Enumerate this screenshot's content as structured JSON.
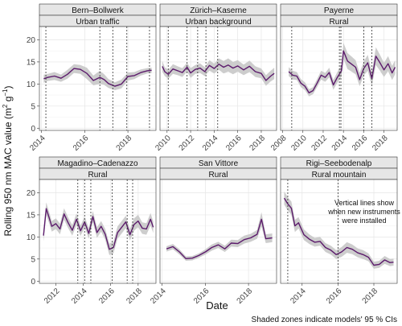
{
  "figure": {
    "ylabel": "Rolling 950 nm MAC value (m² g⁻¹)",
    "ylabel_main": "Rolling 950 nm MAC value (m",
    "ylabel_sup1": "2",
    "ylabel_mid": " g",
    "ylabel_sup2": "−1",
    "ylabel_end": ")",
    "xlabel": "Date",
    "caption": "Shaded zones indicate models' 95 % CIs",
    "annotation": [
      "Vertical lines show",
      "when new instruments",
      "were installed"
    ],
    "colors": {
      "line": "#5b1a6b",
      "band": "#c8c8c8",
      "grid": "#e6e6e6",
      "strip": "#e6e6e6",
      "vline": "#333333"
    }
  },
  "chart_data": [
    {
      "type": "line",
      "site": "Bern–Bollwerk",
      "category": "Urban traffic",
      "ylim": [
        -0.5,
        23
      ],
      "yticks": [
        0,
        5,
        10,
        15,
        20
      ],
      "xlim": [
        2013.9,
        2019.3
      ],
      "xticks": [
        2014,
        2016,
        2018
      ],
      "xticklabels": [
        "2014",
        "2016",
        "2018"
      ],
      "x": [
        2014.1,
        2014.3,
        2014.6,
        2014.9,
        2015.2,
        2015.5,
        2015.8,
        2016.1,
        2016.4,
        2016.7,
        2016.9,
        2017.1,
        2017.4,
        2017.7,
        2018.0,
        2018.3,
        2018.6,
        2018.9,
        2019.1
      ],
      "y": [
        11.2,
        11.5,
        11.8,
        11.3,
        12.2,
        13.5,
        13.3,
        12.4,
        10.8,
        11.5,
        11.0,
        10.1,
        9.5,
        10.0,
        11.7,
        11.9,
        12.6,
        13.0,
        13.1
      ],
      "ci": [
        0.9,
        0.8,
        0.9,
        0.8,
        1.0,
        1.0,
        1.0,
        1.3,
        1.1,
        1.5,
        1.2,
        1.0,
        0.9,
        1.0,
        0.9,
        0.8,
        0.7,
        0.6,
        0.6
      ],
      "vlines": [
        2014.2,
        2016.7,
        2017.3,
        2017.95,
        2019.0
      ]
    },
    {
      "type": "line",
      "site": "Zürich–Kaserne",
      "category": "Urban background",
      "ylim": [
        -0.5,
        23
      ],
      "yticks": [
        0,
        5,
        10,
        15,
        20
      ],
      "xlim": [
        2009.4,
        2019.3
      ],
      "xticks": [
        2010,
        2012,
        2014,
        2016,
        2018
      ],
      "xticklabels": [
        "2010",
        "2012",
        "2014",
        "2016",
        "2018"
      ],
      "x": [
        2009.6,
        2009.8,
        2010.1,
        2010.5,
        2010.9,
        2011.3,
        2011.7,
        2012.0,
        2012.4,
        2012.8,
        2013.2,
        2013.6,
        2014.0,
        2014.4,
        2014.8,
        2015.2,
        2015.6,
        2016.0,
        2016.5,
        2017.0,
        2017.5,
        2018.0,
        2018.4,
        2018.8,
        2019.1
      ],
      "y": [
        14.0,
        12.8,
        12.2,
        13.4,
        13.0,
        12.6,
        13.8,
        12.5,
        13.3,
        13.6,
        12.8,
        14.2,
        13.5,
        14.5,
        13.8,
        14.3,
        13.6,
        14.1,
        13.2,
        14.0,
        12.8,
        12.4,
        10.8,
        11.8,
        12.4
      ],
      "ci": [
        1.2,
        1.0,
        1.0,
        1.1,
        1.0,
        1.0,
        1.0,
        1.1,
        1.0,
        1.1,
        1.0,
        1.2,
        1.1,
        1.3,
        1.4,
        1.5,
        1.4,
        1.3,
        1.2,
        1.3,
        1.2,
        1.1,
        1.2,
        1.2,
        1.3
      ],
      "vlines": [
        2010.1,
        2011.7,
        2012.6,
        2013.3,
        2014.3
      ]
    },
    {
      "type": "line",
      "site": "Payerne",
      "category": "Rural",
      "ylim": [
        -0.5,
        23
      ],
      "yticks": [
        0,
        5,
        10,
        15,
        20
      ],
      "xlim": [
        2007.8,
        2019.3
      ],
      "xticks": [
        2008,
        2010,
        2012,
        2014,
        2016,
        2018
      ],
      "xticklabels": [
        "2008",
        "2010",
        "2012",
        "2014",
        "2016",
        "2018"
      ],
      "x": [
        2008.6,
        2009.0,
        2009.4,
        2009.8,
        2010.2,
        2010.6,
        2011.0,
        2011.4,
        2011.8,
        2012.2,
        2012.6,
        2013.0,
        2013.4,
        2013.8,
        2014.0,
        2014.4,
        2014.8,
        2015.2,
        2015.6,
        2016.0,
        2016.4,
        2016.8,
        2017.2,
        2017.6,
        2018.0,
        2018.4,
        2018.8,
        2019.1
      ],
      "y": [
        12.8,
        12.0,
        11.8,
        10.2,
        9.5,
        8.0,
        8.5,
        10.2,
        12.0,
        11.5,
        12.6,
        9.8,
        11.5,
        13.0,
        17.5,
        15.2,
        14.5,
        13.8,
        11.0,
        13.5,
        14.8,
        11.2,
        16.3,
        14.8,
        13.2,
        14.6,
        12.5,
        13.8
      ],
      "ci": [
        1.0,
        1.0,
        0.9,
        0.9,
        0.9,
        0.8,
        0.8,
        0.9,
        1.0,
        1.0,
        1.1,
        1.1,
        1.2,
        1.4,
        1.8,
        1.8,
        1.7,
        1.6,
        1.5,
        1.6,
        1.8,
        1.6,
        2.0,
        1.8,
        1.6,
        1.7,
        1.6,
        1.6
      ],
      "vlines": [
        2008.9,
        2013.6,
        2013.75,
        2016.0,
        2016.8
      ]
    },
    {
      "type": "line",
      "site": "Magadino–Cadenazzo",
      "category": "Rural",
      "ylim": [
        -0.5,
        23
      ],
      "yticks": [
        0,
        5,
        10,
        15,
        20
      ],
      "xlim": [
        2010.8,
        2019.3
      ],
      "xticks": [
        2012,
        2014,
        2016,
        2018
      ],
      "xticklabels": [
        "2012",
        "2014",
        "2016",
        "2018"
      ],
      "x": [
        2011.1,
        2011.3,
        2011.5,
        2011.7,
        2012.0,
        2012.3,
        2012.6,
        2012.9,
        2013.2,
        2013.5,
        2013.8,
        2014.1,
        2014.4,
        2014.7,
        2015.0,
        2015.3,
        2015.6,
        2015.9,
        2016.2,
        2016.5,
        2016.8,
        2017.1,
        2017.4,
        2017.7,
        2018.0,
        2018.3,
        2018.6,
        2018.9,
        2019.1
      ],
      "y": [
        10.3,
        16.4,
        14.5,
        12.4,
        13.0,
        11.8,
        15.2,
        13.2,
        11.5,
        14.0,
        11.4,
        13.4,
        10.8,
        14.6,
        11.0,
        12.4,
        10.6,
        7.2,
        7.6,
        11.0,
        12.2,
        13.4,
        10.5,
        12.8,
        13.6,
        12.0,
        11.8,
        14.0,
        12.2
      ],
      "ci": [
        1.3,
        1.4,
        1.3,
        1.2,
        1.2,
        1.2,
        1.3,
        1.2,
        1.2,
        1.3,
        1.2,
        1.2,
        1.2,
        1.3,
        1.2,
        1.2,
        1.2,
        1.3,
        1.3,
        1.4,
        1.4,
        1.4,
        1.3,
        1.4,
        1.4,
        1.3,
        1.3,
        1.4,
        1.3
      ],
      "vlines": [
        2013.6,
        2014.1,
        2014.55,
        2016.1,
        2017.2,
        2017.6
      ]
    },
    {
      "type": "line",
      "site": "San Vittore",
      "category": "Rural",
      "ylim": [
        -0.5,
        23
      ],
      "yticks": [
        0,
        5,
        10,
        15,
        20
      ],
      "xlim": [
        2013.9,
        2019.3
      ],
      "xticks": [
        2014,
        2016,
        2018
      ],
      "xticklabels": [
        "2014",
        "2016",
        "2018"
      ],
      "x": [
        2014.2,
        2014.5,
        2014.8,
        2015.1,
        2015.4,
        2015.7,
        2016.0,
        2016.3,
        2016.6,
        2016.9,
        2017.2,
        2017.5,
        2017.8,
        2018.1,
        2018.4,
        2018.6,
        2018.8,
        2019.1
      ],
      "y": [
        7.3,
        7.8,
        6.6,
        5.1,
        5.2,
        5.8,
        6.6,
        7.6,
        8.2,
        7.3,
        8.6,
        8.5,
        9.4,
        9.8,
        10.6,
        14.0,
        9.6,
        9.8
      ],
      "ci": [
        0.6,
        0.6,
        0.6,
        0.5,
        0.5,
        0.5,
        0.6,
        0.7,
        0.7,
        0.7,
        0.8,
        0.8,
        0.9,
        0.9,
        1.0,
        1.6,
        1.0,
        1.0
      ],
      "vlines": []
    },
    {
      "type": "line",
      "site": "Rigi–Seebodenalp",
      "category": "Rural mountain",
      "ylim": [
        -0.5,
        23
      ],
      "yticks": [
        0,
        5,
        10,
        15,
        20
      ],
      "xlim": [
        2012.8,
        2019.3
      ],
      "xticks": [
        2014,
        2016,
        2018
      ],
      "xticklabels": [
        "2014",
        "2016",
        "2018"
      ],
      "x": [
        2013.0,
        2013.2,
        2013.4,
        2013.6,
        2013.8,
        2014.1,
        2014.4,
        2014.7,
        2015.0,
        2015.3,
        2015.6,
        2015.9,
        2016.2,
        2016.5,
        2016.8,
        2017.1,
        2017.4,
        2017.7,
        2018.0,
        2018.3,
        2018.6,
        2018.9,
        2019.1
      ],
      "y": [
        18.8,
        17.5,
        16.5,
        12.5,
        13.2,
        10.5,
        9.5,
        8.8,
        9.0,
        7.6,
        7.0,
        6.0,
        6.6,
        7.6,
        7.2,
        6.4,
        6.0,
        5.4,
        3.6,
        3.8,
        4.8,
        4.2,
        4.3
      ],
      "ci": [
        1.5,
        1.5,
        1.5,
        1.4,
        1.3,
        1.2,
        1.1,
        1.0,
        1.0,
        1.0,
        1.0,
        1.0,
        1.1,
        1.2,
        1.1,
        1.0,
        1.0,
        0.9,
        0.8,
        0.8,
        0.9,
        0.8,
        0.8
      ],
      "vlines": [
        2013.2,
        2016.0
      ]
    }
  ]
}
